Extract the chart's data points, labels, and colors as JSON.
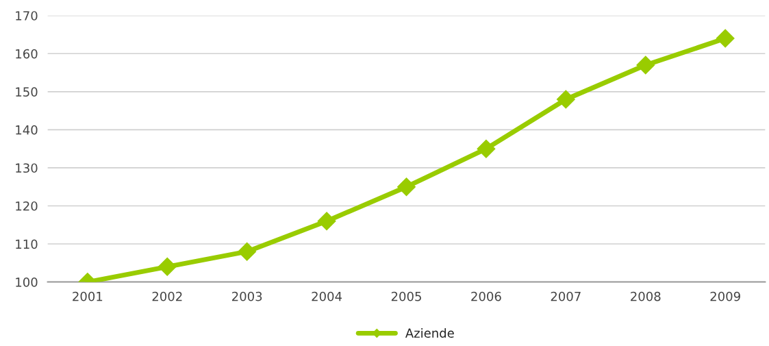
{
  "chart_data": {
    "type": "line",
    "categories": [
      "2001",
      "2002",
      "2003",
      "2004",
      "2005",
      "2006",
      "2007",
      "2008",
      "2009"
    ],
    "series": [
      {
        "name": "Aziende",
        "color": "#99cc00",
        "values": [
          100,
          104,
          108,
          116,
          125,
          135,
          148,
          157,
          164
        ]
      }
    ],
    "ylim": [
      100,
      170
    ],
    "yticks": [
      100,
      110,
      120,
      130,
      140,
      150,
      160,
      170
    ],
    "grid": "y",
    "legend": "bottom",
    "marker": "diamond",
    "line_style": "solid"
  }
}
